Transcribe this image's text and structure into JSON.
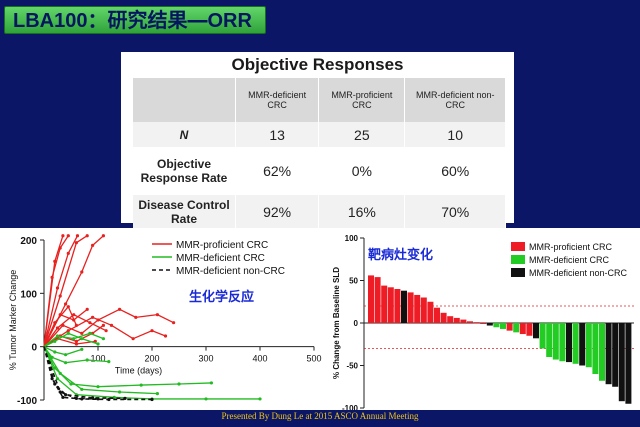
{
  "slide_title": {
    "lead": "LBA100：研究结果",
    "struck": "—",
    "tail": "ORR"
  },
  "objective_responses": {
    "title": "Objective Responses",
    "columns": [
      "MMR-deficient CRC",
      "MMR-proficient CRC",
      "MMR-deficient non-CRC"
    ],
    "rows": [
      {
        "label": "N",
        "values": [
          "13",
          "25",
          "10"
        ]
      },
      {
        "label": "Objective Response Rate",
        "values": [
          "62%",
          "0%",
          "60%"
        ]
      },
      {
        "label": "Disease Control Rate",
        "values": [
          "92%",
          "16%",
          "70%"
        ]
      }
    ]
  },
  "chart_data": [
    {
      "type": "line",
      "annotation": "生化学反应",
      "xlabel": "Time (days)",
      "ylabel": "% Tumor Marker Change",
      "xlim": [
        0,
        500
      ],
      "ylim": [
        -100,
        200
      ],
      "x_ticks": [
        0,
        100,
        200,
        300,
        400,
        500
      ],
      "y_ticks": [
        200,
        100,
        0,
        -100
      ],
      "series": [
        {
          "name": "MMR-proficient CRC",
          "color": "#e8201e",
          "dash": "solid",
          "lines": [
            [
              [
                0,
                0
              ],
              [
                15,
                130
              ],
              [
                30,
                185
              ],
              [
                45,
                230
              ]
            ],
            [
              [
                0,
                0
              ],
              [
                20,
                160
              ],
              [
                35,
                215
              ]
            ],
            [
              [
                0,
                0
              ],
              [
                25,
                110
              ],
              [
                45,
                175
              ],
              [
                62,
                220
              ]
            ],
            [
              [
                0,
                0
              ],
              [
                30,
                95
              ],
              [
                60,
                195
              ],
              [
                80,
                225
              ]
            ],
            [
              [
                0,
                0
              ],
              [
                40,
                80
              ],
              [
                70,
                140
              ],
              [
                90,
                190
              ],
              [
                110,
                225
              ]
            ],
            [
              [
                0,
                0
              ],
              [
                30,
                60
              ],
              [
                55,
                50
              ],
              [
                80,
                70
              ]
            ],
            [
              [
                0,
                0
              ],
              [
                25,
                35
              ],
              [
                55,
                60
              ],
              [
                85,
                45
              ],
              [
                115,
                30
              ]
            ],
            [
              [
                0,
                0
              ],
              [
                35,
                40
              ],
              [
                70,
                25
              ],
              [
                100,
                50
              ],
              [
                140,
                70
              ],
              [
                170,
                55
              ],
              [
                210,
                60
              ],
              [
                240,
                45
              ]
            ],
            [
              [
                0,
                0
              ],
              [
                45,
                30
              ],
              [
                90,
                55
              ],
              [
                125,
                40
              ],
              [
                165,
                15
              ],
              [
                200,
                30
              ],
              [
                225,
                20
              ]
            ],
            [
              [
                0,
                0
              ],
              [
                30,
                20
              ],
              [
                60,
                10
              ],
              [
                90,
                25
              ],
              [
                110,
                40
              ]
            ],
            [
              [
                0,
                0
              ],
              [
                25,
                15
              ],
              [
                60,
                5
              ],
              [
                95,
                10
              ]
            ],
            [
              [
                0,
                0
              ],
              [
                20,
                45
              ],
              [
                45,
                75
              ],
              [
                60,
                40
              ]
            ]
          ]
        },
        {
          "name": "MMR-deficient CRC",
          "color": "#22bb22",
          "dash": "solid",
          "lines": [
            [
              [
                0,
                0
              ],
              [
                20,
                -40
              ],
              [
                50,
                -70
              ],
              [
                100,
                -75
              ],
              [
                180,
                -72
              ],
              [
                250,
                -70
              ],
              [
                310,
                -68
              ]
            ],
            [
              [
                0,
                0
              ],
              [
                30,
                -50
              ],
              [
                70,
                -80
              ],
              [
                140,
                -85
              ],
              [
                210,
                -88
              ]
            ],
            [
              [
                0,
                0
              ],
              [
                25,
                -60
              ],
              [
                60,
                -90
              ],
              [
                130,
                -95
              ],
              [
                200,
                -98
              ],
              [
                300,
                -98
              ],
              [
                400,
                -98
              ]
            ],
            [
              [
                0,
                0
              ],
              [
                15,
                -20
              ],
              [
                40,
                -30
              ],
              [
                80,
                -25
              ],
              [
                120,
                -28
              ]
            ],
            [
              [
                0,
                0
              ],
              [
                20,
                10
              ],
              [
                45,
                25
              ],
              [
                70,
                15
              ],
              [
                100,
                5
              ]
            ],
            [
              [
                0,
                0
              ],
              [
                25,
                20
              ],
              [
                55,
                15
              ],
              [
                85,
                25
              ],
              [
                110,
                15
              ]
            ],
            [
              [
                0,
                0
              ],
              [
                20,
                -10
              ],
              [
                40,
                -15
              ],
              [
                70,
                -5
              ]
            ]
          ]
        },
        {
          "name": "MMR-deficient non-CRC",
          "color": "#111111",
          "dash": "dashed",
          "lines": [
            [
              [
                0,
                0
              ],
              [
                15,
                -60
              ],
              [
                35,
                -95
              ],
              [
                70,
                -98
              ],
              [
                120,
                -99
              ],
              [
                200,
                -99
              ]
            ],
            [
              [
                0,
                0
              ],
              [
                20,
                -70
              ],
              [
                40,
                -90
              ],
              [
                90,
                -96
              ],
              [
                150,
                -97
              ]
            ],
            [
              [
                0,
                0
              ],
              [
                10,
                -30
              ],
              [
                30,
                -85
              ],
              [
                60,
                -97
              ],
              [
                100,
                -98
              ]
            ]
          ]
        }
      ]
    },
    {
      "type": "bar",
      "title": "靶病灶变化",
      "ylabel": "% Change from Baseline SLD",
      "ylim": [
        -100,
        100
      ],
      "y_ticks": [
        100,
        50,
        0,
        -50,
        -100
      ],
      "reference_lines": [
        20,
        -30
      ],
      "series": [
        {
          "name": "MMR-proficient CRC",
          "color": "#ee1c24"
        },
        {
          "name": "MMR-deficient CRC",
          "color": "#22cc22"
        },
        {
          "name": "MMR-deficient non-CRC",
          "color": "#111111"
        }
      ],
      "bars": [
        {
          "value": 56,
          "series": 0
        },
        {
          "value": 54,
          "series": 0
        },
        {
          "value": 44,
          "series": 0
        },
        {
          "value": 42,
          "series": 0
        },
        {
          "value": 40,
          "series": 0
        },
        {
          "value": 38,
          "series": 2
        },
        {
          "value": 36,
          "series": 0
        },
        {
          "value": 33,
          "series": 0
        },
        {
          "value": 30,
          "series": 0
        },
        {
          "value": 25,
          "series": 0
        },
        {
          "value": 18,
          "series": 0
        },
        {
          "value": 12,
          "series": 0
        },
        {
          "value": 8,
          "series": 0
        },
        {
          "value": 6,
          "series": 0
        },
        {
          "value": 4,
          "series": 0
        },
        {
          "value": 2,
          "series": 0
        },
        {
          "value": 1,
          "series": 0
        },
        {
          "value": -1,
          "series": 0
        },
        {
          "value": -3,
          "series": 2
        },
        {
          "value": -5,
          "series": 1
        },
        {
          "value": -7,
          "series": 1
        },
        {
          "value": -9,
          "series": 0
        },
        {
          "value": -11,
          "series": 1
        },
        {
          "value": -13,
          "series": 0
        },
        {
          "value": -15,
          "series": 0
        },
        {
          "value": -18,
          "series": 2
        },
        {
          "value": -30,
          "series": 1
        },
        {
          "value": -40,
          "series": 1
        },
        {
          "value": -43,
          "series": 1
        },
        {
          "value": -45,
          "series": 1
        },
        {
          "value": -46,
          "series": 2
        },
        {
          "value": -48,
          "series": 1
        },
        {
          "value": -50,
          "series": 2
        },
        {
          "value": -52,
          "series": 1
        },
        {
          "value": -60,
          "series": 1
        },
        {
          "value": -68,
          "series": 1
        },
        {
          "value": -72,
          "series": 2
        },
        {
          "value": -75,
          "series": 2
        },
        {
          "value": -92,
          "series": 2
        },
        {
          "value": -95,
          "series": 2
        }
      ]
    }
  ],
  "footer": "Presented By Dung Le at 2015 ASCO Annual Meeting"
}
